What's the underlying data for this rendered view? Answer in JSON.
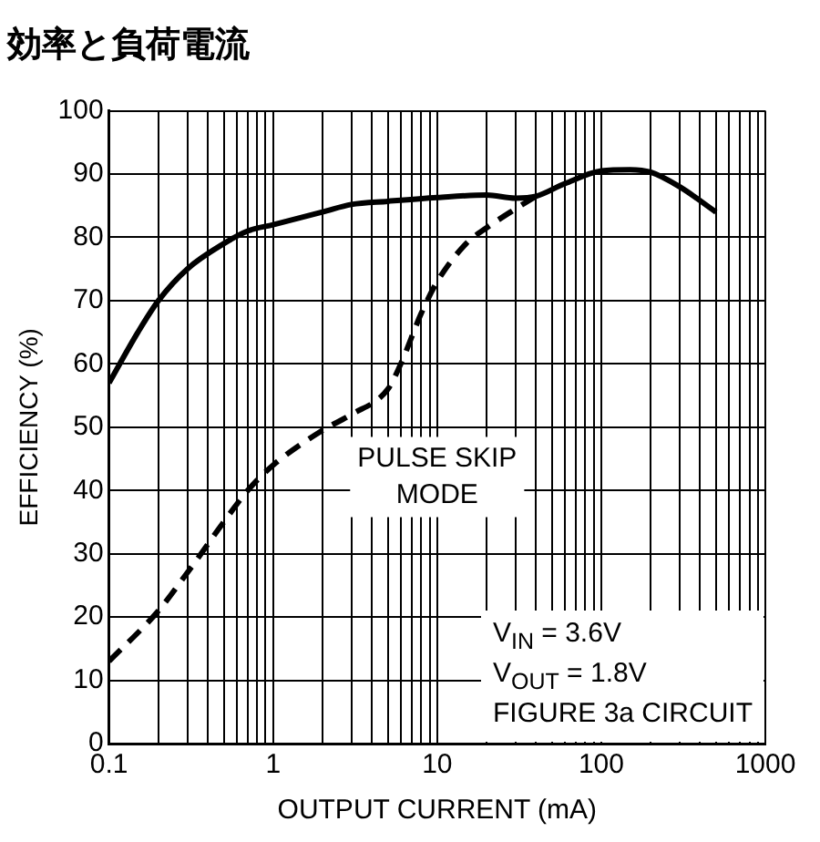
{
  "chart_data": {
    "type": "line",
    "title": "効率と負荷電流",
    "xlabel": "OUTPUT CURRENT (mA)",
    "ylabel": "EFFICIENCY (%)",
    "log": "x",
    "grid": true,
    "legend": false,
    "marker": "none",
    "xlim": [
      0.1,
      1000
    ],
    "ylim": [
      0,
      100
    ],
    "xticks": [
      0.1,
      {
        "value": 0.2,
        "label": null
      },
      {
        "value": 0.3,
        "label": null
      },
      {
        "value": 0.4,
        "label": null
      },
      {
        "value": 0.5,
        "label": null
      },
      {
        "value": 0.6,
        "label": null
      },
      {
        "value": 0.7,
        "label": null
      },
      {
        "value": 0.8,
        "label": null
      },
      {
        "value": 0.9,
        "label": null
      },
      1,
      {
        "value": 2,
        "label": null
      },
      {
        "value": 3,
        "label": null
      },
      {
        "value": 4,
        "label": null
      },
      {
        "value": 5,
        "label": null
      },
      {
        "value": 6,
        "label": null
      },
      {
        "value": 7,
        "label": null
      },
      {
        "value": 8,
        "label": null
      },
      {
        "value": 9,
        "label": null
      },
      10,
      {
        "value": 20,
        "label": null
      },
      {
        "value": 30,
        "label": null
      },
      {
        "value": 40,
        "label": null
      },
      {
        "value": 50,
        "label": null
      },
      {
        "value": 60,
        "label": null
      },
      {
        "value": 70,
        "label": null
      },
      {
        "value": 80,
        "label": null
      },
      {
        "value": 90,
        "label": null
      },
      100,
      {
        "value": 200,
        "label": null
      },
      {
        "value": 300,
        "label": null
      },
      {
        "value": 400,
        "label": null
      },
      {
        "value": 500,
        "label": null
      },
      {
        "value": 600,
        "label": null
      },
      {
        "value": 700,
        "label": null
      },
      {
        "value": 800,
        "label": null
      },
      {
        "value": 900,
        "label": null
      },
      1000
    ],
    "yticks": [
      0,
      10,
      20,
      30,
      40,
      50,
      60,
      70,
      80,
      90,
      100
    ],
    "annotations": [
      "V$_{IN}$ = 3.6V",
      "V$_{OUT}$ = 1.8V",
      "FIGURE 3a CIRCUIT"
    ],
    "series": [
      {
        "color": "#000000",
        "line_style": "solid",
        "x": [
          0.1,
          0.15,
          0.2,
          0.3,
          0.5,
          0.7,
          1,
          2,
          3,
          5,
          10,
          20,
          30,
          40,
          60,
          100,
          150,
          200,
          300,
          500
        ],
        "values": [
          57,
          65,
          70,
          75,
          79,
          81,
          82,
          84,
          85.2,
          85.7,
          86.3,
          86.7,
          86.2,
          86.5,
          88.5,
          90.5,
          90.7,
          90.3,
          88,
          84
        ]
      },
      {
        "name": "PULSE SKIP MODE",
        "color": "#000000",
        "line_style": "dashed",
        "x": [
          0.1,
          0.2,
          0.3,
          0.5,
          0.7,
          1,
          2,
          3,
          5,
          6,
          8,
          10,
          15,
          20,
          30,
          40
        ],
        "values": [
          13,
          21,
          27,
          35,
          40,
          44,
          49.5,
          52,
          56,
          60,
          68,
          73,
          79,
          81.5,
          84.5,
          86.5
        ]
      }
    ]
  }
}
